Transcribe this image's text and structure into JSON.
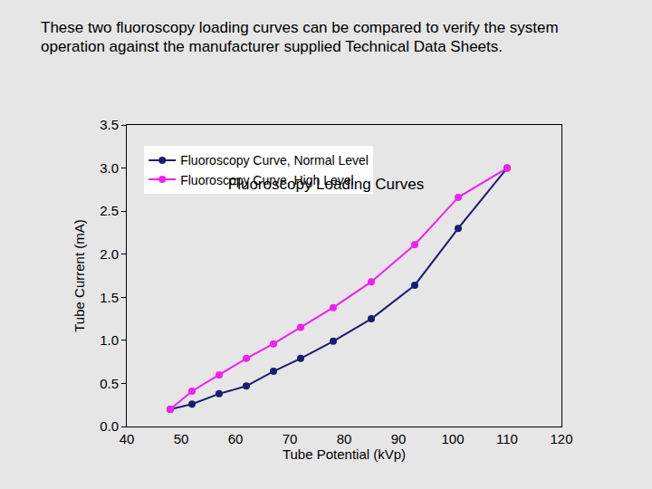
{
  "chart_data": {
    "type": "line",
    "title": "Fluoroscopy Loading Curves",
    "annotations": [
      "These two fluoroscopy loading curves can be compared to verify the system operation against the manufacturer supplied Technical Data Sheets."
    ],
    "x_label": "Tube Potential (kVp)",
    "y_label": "Tube Current (mA)",
    "x": [
      48,
      52,
      57,
      62,
      67,
      72,
      78,
      85,
      93,
      101,
      110
    ],
    "series": [
      {
        "name": "Fluoroscopy Curve, Normal Level",
        "color": "#1c1c70",
        "marker": "circle",
        "line_style": "solid",
        "values": [
          0.2,
          0.26,
          0.38,
          0.47,
          0.64,
          0.79,
          0.99,
          1.25,
          1.64,
          2.3,
          3.0
        ]
      },
      {
        "name": "Fluoroscopy Curve, High Level",
        "color": "#f020f0",
        "marker": "circle",
        "line_style": "solid",
        "values": [
          0.2,
          0.41,
          0.6,
          0.79,
          0.96,
          1.15,
          1.38,
          1.68,
          2.11,
          2.66,
          3.0
        ]
      }
    ],
    "xlim": [
      40,
      120
    ],
    "xticks": [
      40,
      50,
      60,
      70,
      80,
      90,
      100,
      110,
      120
    ],
    "ylim": [
      0,
      3.5
    ],
    "yticks": [
      {
        "value": 0,
        "label": "0.0"
      },
      0.5,
      {
        "value": 1,
        "label": "1.0"
      },
      1.5,
      {
        "value": 2,
        "label": "2.0"
      },
      2.5,
      {
        "value": 3,
        "label": "3.0"
      },
      3.5
    ],
    "grid": false,
    "legend": "top left"
  }
}
